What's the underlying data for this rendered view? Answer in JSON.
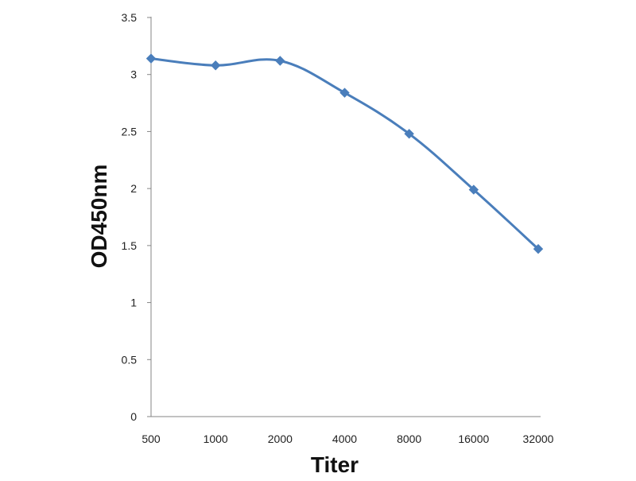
{
  "chart_data": {
    "type": "line",
    "title": "",
    "xlabel": "Titer",
    "ylabel": "OD450nm",
    "x": [
      "500",
      "1000",
      "2000",
      "4000",
      "8000",
      "16000",
      "32000"
    ],
    "series": [
      {
        "values": [
          3.14,
          3.08,
          3.12,
          2.84,
          2.48,
          1.99,
          1.47
        ]
      }
    ],
    "ylim": [
      0,
      3.5
    ],
    "yticks": [
      "0",
      "0.5",
      "1",
      "1.5",
      "2",
      "2.5",
      "3",
      "3.5"
    ],
    "grid": false,
    "legend": "none",
    "line_color": "#4a7ebb",
    "marker": "diamond"
  }
}
